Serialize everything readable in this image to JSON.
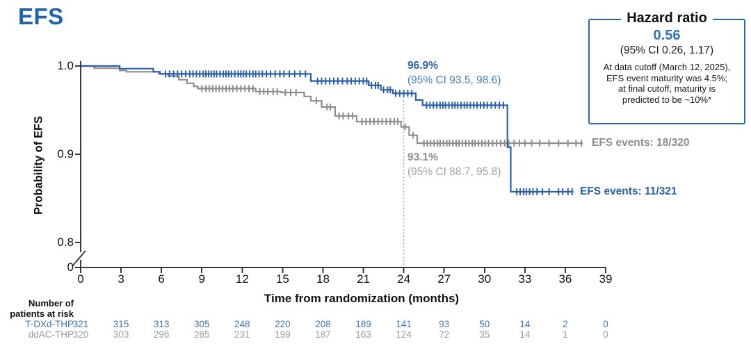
{
  "title": "EFS",
  "colors": {
    "blue": "#2a5fa9",
    "gray": "#8d8d8d",
    "title_blue": "#2061ae",
    "value_blue": "#2e75b8",
    "axis": "#3a3a3a",
    "dotted_line": "#9a9a9a"
  },
  "hazard_box": {
    "title": "Hazard ratio",
    "value": "0.56",
    "ci": "(95% CI 0.26, 1.17)",
    "note_lines": [
      "At data cutoff (March 12, 2025),",
      "EFS event maturity was 4.5%;",
      "at final cutoff, maturity is",
      "predicted to be ~10%*"
    ]
  },
  "annotations": {
    "tdxd_pct": "96.9%",
    "tdxd_ci": "(95% CI 93.5, 98.6)",
    "ddac_pct": "93.1%",
    "ddac_ci": "(95% CI 88.7, 95.8)",
    "tdxd_events": "EFS events: 11/321",
    "ddac_events": "EFS events: 18/320"
  },
  "chart_data": {
    "type": "line",
    "step": true,
    "title": "EFS",
    "xlabel": "Time from randomization (months)",
    "ylabel": "Probability of EFS",
    "x_ticks": [
      0,
      3,
      6,
      9,
      12,
      15,
      18,
      21,
      24,
      27,
      30,
      33,
      36,
      39
    ],
    "y_ticks": [
      "1.0",
      "0.9",
      "0.8",
      "0"
    ],
    "ylim_shown": [
      0.8,
      1.0
    ],
    "y_axis_break": true,
    "landmark_vline_month": 24,
    "series": [
      {
        "name": "T-DXd-THP",
        "color": "#2a5fa9",
        "landmark_value_pct": 96.9,
        "events": "11/321",
        "steps": [
          [
            0,
            1.0
          ],
          [
            2.9,
            0.997
          ],
          [
            5.4,
            0.9935
          ],
          [
            5.9,
            0.991
          ],
          [
            17.1,
            0.983
          ],
          [
            21.4,
            0.978
          ],
          [
            22.3,
            0.973
          ],
          [
            23.2,
            0.969
          ],
          [
            24.9,
            0.9615
          ],
          [
            25.4,
            0.9555
          ],
          [
            31.7,
            0.908
          ],
          [
            31.95,
            0.8575
          ],
          [
            36.6,
            0.8575
          ]
        ],
        "censor_months": [
          6.3,
          6.6,
          6.9,
          7.2,
          7.5,
          7.8,
          8.1,
          8.35,
          8.6,
          8.85,
          9.1,
          9.3,
          9.5,
          9.7,
          9.9,
          10.1,
          10.35,
          10.6,
          10.8,
          11.0,
          11.2,
          11.45,
          11.7,
          11.9,
          12.1,
          12.3,
          12.55,
          12.8,
          13.0,
          13.25,
          13.5,
          13.8,
          14.1,
          14.45,
          14.8,
          15.1,
          15.5,
          15.9,
          16.3,
          16.7,
          17.6,
          17.9,
          18.2,
          18.5,
          18.8,
          19.1,
          19.45,
          19.8,
          20.1,
          20.4,
          20.7,
          21.0,
          21.25,
          21.6,
          21.9,
          22.1,
          22.5,
          22.8,
          23.0,
          23.4,
          23.7,
          24.0,
          24.3,
          24.6,
          25.7,
          25.95,
          26.2,
          26.45,
          26.7,
          26.9,
          27.1,
          27.35,
          27.6,
          27.8,
          28.0,
          28.25,
          28.5,
          28.7,
          28.95,
          29.2,
          29.45,
          29.7,
          29.95,
          30.2,
          30.5,
          30.8,
          31.1,
          31.4,
          32.4,
          32.65,
          32.9,
          33.1,
          33.35,
          33.6,
          33.9,
          34.3,
          34.8,
          35.5,
          35.8,
          36.2,
          36.5
        ]
      },
      {
        "name": "ddAC-THP",
        "color": "#8d8d8d",
        "landmark_value_pct": 93.1,
        "events": "18/320",
        "steps": [
          [
            0,
            1.0
          ],
          [
            1.0,
            0.9975
          ],
          [
            2.9,
            0.995
          ],
          [
            3.4,
            0.9935
          ],
          [
            5.8,
            0.991
          ],
          [
            6.5,
            0.9885
          ],
          [
            7.3,
            0.9845
          ],
          [
            7.9,
            0.9805
          ],
          [
            8.4,
            0.977
          ],
          [
            8.7,
            0.9745
          ],
          [
            13.0,
            0.971
          ],
          [
            14.9,
            0.97
          ],
          [
            16.6,
            0.9655
          ],
          [
            17.1,
            0.9605
          ],
          [
            17.9,
            0.9535
          ],
          [
            18.9,
            0.9435
          ],
          [
            20.5,
            0.937
          ],
          [
            23.8,
            0.931
          ],
          [
            24.4,
            0.9215
          ],
          [
            25.0,
            0.9125
          ],
          [
            37.3,
            0.9125
          ]
        ],
        "censor_months": [
          9.0,
          9.3,
          9.55,
          9.8,
          10.05,
          10.3,
          10.55,
          10.8,
          11.05,
          11.3,
          11.6,
          11.9,
          12.2,
          12.5,
          12.8,
          13.3,
          13.6,
          13.9,
          14.3,
          14.6,
          15.2,
          15.6,
          16.0,
          17.5,
          18.3,
          18.55,
          19.2,
          19.5,
          19.9,
          20.2,
          20.9,
          21.2,
          21.5,
          21.8,
          22.1,
          22.4,
          22.7,
          23.0,
          23.3,
          23.55,
          24.1,
          24.7,
          25.5,
          25.75,
          26.0,
          26.25,
          26.5,
          26.7,
          26.95,
          27.2,
          27.4,
          27.65,
          27.9,
          28.1,
          28.35,
          28.6,
          28.85,
          29.1,
          29.3,
          29.55,
          29.8,
          30.05,
          30.3,
          30.6,
          30.9,
          31.2,
          31.5,
          31.8,
          32.2,
          32.6,
          33.0,
          33.5,
          34.1,
          34.8,
          35.5,
          36.2,
          36.8,
          37.2
        ]
      }
    ]
  },
  "risk_table": {
    "header_lines": [
      "Number of",
      "patients at risk"
    ],
    "rows": [
      {
        "label": "T-DXd-THP",
        "color": "blue",
        "values": [
          321,
          315,
          313,
          305,
          248,
          220,
          208,
          189,
          141,
          93,
          50,
          14,
          2,
          0
        ]
      },
      {
        "label": "ddAC-THP",
        "color": "gray",
        "values": [
          320,
          303,
          296,
          285,
          231,
          199,
          187,
          163,
          124,
          72,
          35,
          14,
          1,
          0
        ]
      }
    ]
  }
}
